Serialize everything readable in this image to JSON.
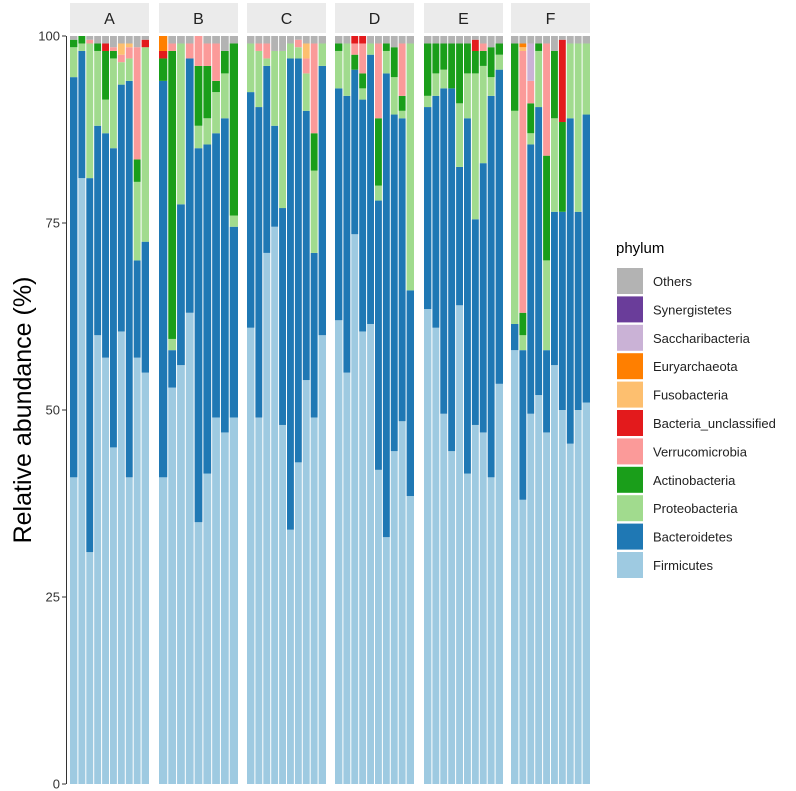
{
  "chart_data": {
    "type": "stacked_bar_faceted",
    "ylabel": "Relative abundance (%)",
    "ylim": [
      0,
      100
    ],
    "yticks": [
      0,
      25,
      50,
      75,
      100
    ],
    "legend_title": "phylum",
    "legend_position": "right",
    "phyla": [
      {
        "name": "Others",
        "color": "#b3b3b3"
      },
      {
        "name": "Synergistetes",
        "color": "#6a3d9a"
      },
      {
        "name": "Saccharibacteria",
        "color": "#cab2d6"
      },
      {
        "name": "Euryarchaeota",
        "color": "#ff7f00"
      },
      {
        "name": "Fusobacteria",
        "color": "#fdbf6f"
      },
      {
        "name": "Bacteria_unclassified",
        "color": "#e31a1c"
      },
      {
        "name": "Verrucomicrobia",
        "color": "#fb9a99"
      },
      {
        "name": "Actinobacteria",
        "color": "#1a9e1a"
      },
      {
        "name": "Proteobacteria",
        "color": "#a1db8e"
      },
      {
        "name": "Bacteroidetes",
        "color": "#1f78b4"
      },
      {
        "name": "Firmicutes",
        "color": "#9ecae1"
      }
    ],
    "stack_order_bottom_to_top": [
      "Firmicutes",
      "Bacteroidetes",
      "Proteobacteria",
      "Actinobacteria",
      "Verrucomicrobia",
      "Bacteria_unclassified",
      "Fusobacteria",
      "Euryarchaeota",
      "Saccharibacteria",
      "Synergistetes",
      "Others"
    ],
    "facets": [
      {
        "label": "A",
        "samples": [
          {
            "Firmicutes": 41,
            "Bacteroidetes": 53.5,
            "Proteobacteria": 4,
            "Actinobacteria": 1,
            "Others": 0.5
          },
          {
            "Firmicutes": 81,
            "Bacteroidetes": 17,
            "Proteobacteria": 1,
            "Actinobacteria": 1
          },
          {
            "Firmicutes": 31,
            "Bacteroidetes": 50,
            "Proteobacteria": 18,
            "Verrucomicrobia": 0.5,
            "Others": 0.5
          },
          {
            "Firmicutes": 60,
            "Bacteroidetes": 28,
            "Proteobacteria": 10,
            "Actinobacteria": 1,
            "Others": 1
          },
          {
            "Firmicutes": 57,
            "Bacteroidetes": 30,
            "Proteobacteria": 4.5,
            "Actinobacteria": 6.5,
            "Bacteria_unclassified": 1,
            "Others": 1
          },
          {
            "Firmicutes": 45,
            "Bacteroidetes": 40,
            "Proteobacteria": 12,
            "Actinobacteria": 1,
            "Verrucomicrobia": 0.5,
            "Others": 1.5
          },
          {
            "Firmicutes": 60.5,
            "Bacteroidetes": 33,
            "Proteobacteria": 3,
            "Verrucomicrobia": 1,
            "Fusobacteria": 1.5,
            "Others": 1
          },
          {
            "Firmicutes": 41,
            "Bacteroidetes": 53,
            "Proteobacteria": 3,
            "Verrucomicrobia": 1.5,
            "Fusobacteria": 0.5,
            "Others": 1
          },
          {
            "Firmicutes": 57,
            "Bacteroidetes": 13,
            "Proteobacteria": 10.5,
            "Actinobacteria": 3,
            "Verrucomicrobia": 15,
            "Others": 1.5
          },
          {
            "Firmicutes": 55,
            "Bacteroidetes": 17.5,
            "Proteobacteria": 26,
            "Bacteria_unclassified": 1,
            "Others": 0.5
          }
        ]
      },
      {
        "label": "B",
        "samples": [
          {
            "Firmicutes": 41,
            "Bacteroidetes": 53,
            "Actinobacteria": 3,
            "Bacteria_unclassified": 1,
            "Euryarchaeota": 2
          },
          {
            "Firmicutes": 53,
            "Bacteroidetes": 5,
            "Proteobacteria": 1.5,
            "Actinobacteria": 38.5,
            "Verrucomicrobia": 1,
            "Others": 1
          },
          {
            "Firmicutes": 56,
            "Bacteroidetes": 21.5,
            "Proteobacteria": 21.5,
            "Others": 1
          },
          {
            "Firmicutes": 63,
            "Bacteroidetes": 34,
            "Verrucomicrobia": 2,
            "Others": 1
          },
          {
            "Firmicutes": 35,
            "Bacteroidetes": 50,
            "Proteobacteria": 3,
            "Actinobacteria": 8,
            "Verrucomicrobia": 4
          },
          {
            "Firmicutes": 41.5,
            "Bacteroidetes": 44,
            "Proteobacteria": 3.5,
            "Actinobacteria": 7,
            "Verrucomicrobia": 3,
            "Others": 1
          },
          {
            "Firmicutes": 49,
            "Bacteroidetes": 38,
            "Proteobacteria": 5.5,
            "Actinobacteria": 1.5,
            "Verrucomicrobia": 5,
            "Others": 1
          },
          {
            "Firmicutes": 47,
            "Bacteroidetes": 42,
            "Proteobacteria": 6,
            "Actinobacteria": 3,
            "Others": 2
          },
          {
            "Firmicutes": 49,
            "Bacteroidetes": 25.5,
            "Proteobacteria": 1.5,
            "Actinobacteria": 23,
            "Others": 1
          }
        ]
      },
      {
        "label": "C",
        "samples": [
          {
            "Firmicutes": 61,
            "Bacteroidetes": 31.5,
            "Proteobacteria": 6.5,
            "Others": 1
          },
          {
            "Firmicutes": 49,
            "Bacteroidetes": 41.5,
            "Proteobacteria": 7.5,
            "Verrucomicrobia": 1,
            "Others": 1
          },
          {
            "Firmicutes": 71,
            "Bacteroidetes": 25,
            "Proteobacteria": 1,
            "Verrucomicrobia": 2,
            "Others": 1
          },
          {
            "Firmicutes": 74.5,
            "Bacteroidetes": 13.5,
            "Proteobacteria": 10,
            "Others": 2
          },
          {
            "Firmicutes": 48,
            "Bacteroidetes": 29,
            "Proteobacteria": 21,
            "Others": 2
          },
          {
            "Firmicutes": 34,
            "Bacteroidetes": 63,
            "Proteobacteria": 2,
            "Others": 1
          },
          {
            "Firmicutes": 43,
            "Bacteroidetes": 54,
            "Proteobacteria": 1.5,
            "Verrucomicrobia": 1,
            "Others": 0.5
          },
          {
            "Firmicutes": 54,
            "Bacteroidetes": 36,
            "Proteobacteria": 5,
            "Verrucomicrobia": 2,
            "Fusobacteria": 2,
            "Others": 1
          },
          {
            "Firmicutes": 49,
            "Bacteroidetes": 22,
            "Proteobacteria": 11,
            "Actinobacteria": 5,
            "Verrucomicrobia": 12,
            "Others": 1
          },
          {
            "Firmicutes": 60,
            "Bacteroidetes": 36,
            "Proteobacteria": 3,
            "Others": 1
          }
        ]
      },
      {
        "label": "D",
        "samples": [
          {
            "Firmicutes": 62,
            "Bacteroidetes": 31,
            "Proteobacteria": 5,
            "Actinobacteria": 1,
            "Others": 1
          },
          {
            "Firmicutes": 55,
            "Bacteroidetes": 37,
            "Proteobacteria": 7,
            "Others": 1
          },
          {
            "Firmicutes": 73.5,
            "Bacteroidetes": 22,
            "Actinobacteria": 2,
            "Verrucomicrobia": 1.5,
            "Bacteria_unclassified": 1
          },
          {
            "Firmicutes": 60.5,
            "Bacteroidetes": 31,
            "Proteobacteria": 1.5,
            "Actinobacteria": 2,
            "Verrucomicrobia": 4,
            "Bacteria_unclassified": 1
          },
          {
            "Firmicutes": 61.5,
            "Bacteroidetes": 36,
            "Proteobacteria": 1.5,
            "Others": 1
          },
          {
            "Firmicutes": 42,
            "Bacteroidetes": 36,
            "Proteobacteria": 2,
            "Actinobacteria": 9,
            "Verrucomicrobia": 10,
            "Others": 1
          },
          {
            "Firmicutes": 33,
            "Bacteroidetes": 62,
            "Proteobacteria": 3,
            "Actinobacteria": 1,
            "Others": 1
          },
          {
            "Firmicutes": 44.5,
            "Bacteroidetes": 45,
            "Proteobacteria": 5,
            "Actinobacteria": 4,
            "Others": 1.5
          },
          {
            "Firmicutes": 48.5,
            "Bacteroidetes": 40.5,
            "Proteobacteria": 1,
            "Actinobacteria": 2,
            "Verrucomicrobia": 7,
            "Others": 1
          },
          {
            "Firmicutes": 38.5,
            "Bacteroidetes": 27.5,
            "Proteobacteria": 33,
            "Others": 1
          }
        ]
      },
      {
        "label": "E",
        "samples": [
          {
            "Firmicutes": 63.5,
            "Bacteroidetes": 27,
            "Proteobacteria": 1.5,
            "Actinobacteria": 7,
            "Others": 1
          },
          {
            "Firmicutes": 61,
            "Bacteroidetes": 31,
            "Proteobacteria": 3,
            "Actinobacteria": 4,
            "Others": 1
          },
          {
            "Firmicutes": 49.5,
            "Bacteroidetes": 43.5,
            "Proteobacteria": 2.5,
            "Actinobacteria": 3.5,
            "Others": 1
          },
          {
            "Firmicutes": 44.5,
            "Bacteroidetes": 48.5,
            "Actinobacteria": 6,
            "Others": 1
          },
          {
            "Firmicutes": 64,
            "Bacteroidetes": 18.5,
            "Proteobacteria": 8.5,
            "Actinobacteria": 8,
            "Others": 1
          },
          {
            "Firmicutes": 41.5,
            "Bacteroidetes": 47.5,
            "Proteobacteria": 6,
            "Actinobacteria": 4,
            "Others": 1
          },
          {
            "Firmicutes": 48,
            "Bacteroidetes": 27.5,
            "Proteobacteria": 19.5,
            "Actinobacteria": 3,
            "Bacteria_unclassified": 1.5,
            "Others": 0.5
          },
          {
            "Firmicutes": 47,
            "Bacteroidetes": 36,
            "Proteobacteria": 13,
            "Actinobacteria": 2,
            "Verrucomicrobia": 1,
            "Others": 1
          },
          {
            "Firmicutes": 41,
            "Bacteroidetes": 51,
            "Proteobacteria": 2.5,
            "Actinobacteria": 4,
            "Others": 1.5
          },
          {
            "Firmicutes": 53.5,
            "Bacteroidetes": 42,
            "Proteobacteria": 2,
            "Actinobacteria": 1.5,
            "Others": 1
          }
        ]
      },
      {
        "label": "F",
        "samples": [
          {
            "Firmicutes": 58,
            "Bacteroidetes": 3.5,
            "Proteobacteria": 28.5,
            "Actinobacteria": 9,
            "Others": 1
          },
          {
            "Firmicutes": 38,
            "Bacteroidetes": 20,
            "Proteobacteria": 2,
            "Actinobacteria": 3,
            "Verrucomicrobia": 35,
            "Fusobacteria": 0.5,
            "Euryarchaeota": 0.5,
            "Others": 1
          },
          {
            "Firmicutes": 49.5,
            "Bacteroidetes": 36,
            "Proteobacteria": 1.5,
            "Actinobacteria": 4,
            "Verrucomicrobia": 3,
            "Saccharibacteria": 5,
            "Others": 1
          },
          {
            "Firmicutes": 52,
            "Bacteroidetes": 38.5,
            "Proteobacteria": 7.5,
            "Actinobacteria": 1,
            "Others": 1
          },
          {
            "Firmicutes": 47,
            "Bacteroidetes": 11,
            "Proteobacteria": 12,
            "Actinobacteria": 14,
            "Verrucomicrobia": 15,
            "Others": 1
          },
          {
            "Firmicutes": 56,
            "Bacteroidetes": 20.5,
            "Proteobacteria": 12.5,
            "Actinobacteria": 9,
            "Others": 2
          },
          {
            "Firmicutes": 50,
            "Bacteroidetes": 26.5,
            "Actinobacteria": 12,
            "Bacteria_unclassified": 11,
            "Others": 0.5
          },
          {
            "Firmicutes": 45.5,
            "Bacteroidetes": 43.5,
            "Proteobacteria": 10,
            "Others": 1
          },
          {
            "Firmicutes": 50,
            "Bacteroidetes": 26.5,
            "Proteobacteria": 22.5,
            "Others": 1
          },
          {
            "Firmicutes": 51,
            "Bacteroidetes": 38.5,
            "Proteobacteria": 9.5,
            "Others": 1
          }
        ]
      }
    ]
  }
}
